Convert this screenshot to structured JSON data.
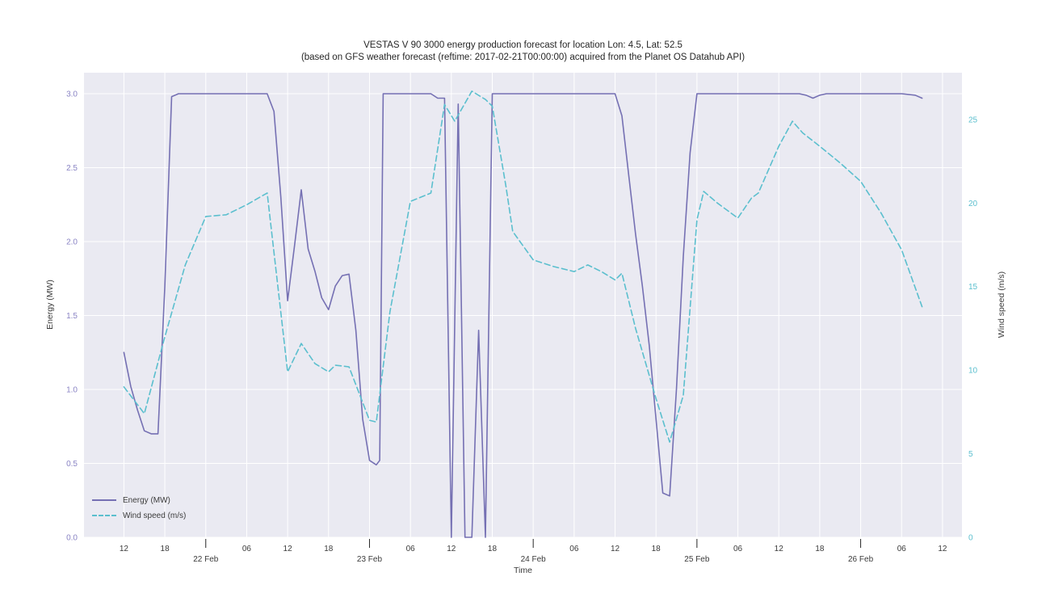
{
  "chart_data": {
    "type": "line",
    "title": "VESTAS V 90 3000 energy production forecast for location Lon: 4.5, Lat: 52.5",
    "subtitle": "(based on GFS weather forecast (reftime: 2017-02-21T00:00:00) acquired from the Planet OS Datahub API)",
    "xlabel": "Time",
    "ylabel_left": "Energy (MW)",
    "ylabel_right": "Wind speed (m/s)",
    "x_unit": "hours since 2017-02-21 12:00",
    "xlim": [
      -5.85,
      122.85
    ],
    "ylim_left": [
      0,
      3.142
    ],
    "ylim_right": [
      0,
      27.8
    ],
    "grid": true,
    "legend": {
      "position": "lower left"
    },
    "colors": {
      "plot_bg": "#eaeaf2",
      "grid": "#ffffff",
      "energy": "#7570b3",
      "wind": "#5bbfce",
      "left_tick": "#8a84c4",
      "right_tick": "#5bbfce",
      "tick": "#3a3a3a"
    },
    "x_ticks": [
      {
        "t": 0,
        "label": "12"
      },
      {
        "t": 6,
        "label": "18"
      },
      {
        "t": 12,
        "label": "",
        "day": "22 Feb"
      },
      {
        "t": 18,
        "label": "06"
      },
      {
        "t": 24,
        "label": "12"
      },
      {
        "t": 30,
        "label": "18"
      },
      {
        "t": 36,
        "label": "",
        "day": "23 Feb"
      },
      {
        "t": 42,
        "label": "06"
      },
      {
        "t": 48,
        "label": "12"
      },
      {
        "t": 54,
        "label": "18"
      },
      {
        "t": 60,
        "label": "",
        "day": "24 Feb"
      },
      {
        "t": 66,
        "label": "06"
      },
      {
        "t": 72,
        "label": "12"
      },
      {
        "t": 78,
        "label": "18"
      },
      {
        "t": 84,
        "label": "",
        "day": "25 Feb"
      },
      {
        "t": 90,
        "label": "06"
      },
      {
        "t": 96,
        "label": "12"
      },
      {
        "t": 102,
        "label": "18"
      },
      {
        "t": 108,
        "label": "",
        "day": "26 Feb"
      },
      {
        "t": 114,
        "label": "06"
      },
      {
        "t": 120,
        "label": "12"
      }
    ],
    "y_ticks_left": [
      {
        "v": 0.0,
        "label": "0.0"
      },
      {
        "v": 0.5,
        "label": "0.5"
      },
      {
        "v": 1.0,
        "label": "1.0"
      },
      {
        "v": 1.5,
        "label": "1.5"
      },
      {
        "v": 2.0,
        "label": "2.0"
      },
      {
        "v": 2.5,
        "label": "2.5"
      },
      {
        "v": 3.0,
        "label": "3.0"
      }
    ],
    "y_ticks_right": [
      {
        "v": 0,
        "label": "0"
      },
      {
        "v": 5,
        "label": "5"
      },
      {
        "v": 10,
        "label": "10"
      },
      {
        "v": 15,
        "label": "15"
      },
      {
        "v": 20,
        "label": "20"
      },
      {
        "v": 25,
        "label": "25"
      }
    ],
    "series": [
      {
        "name": "Energy (MW)",
        "axis": "left",
        "color": "#7570b3",
        "style": "solid",
        "points": [
          [
            0,
            1.25
          ],
          [
            1,
            1.02
          ],
          [
            2,
            0.86
          ],
          [
            3,
            0.72
          ],
          [
            4,
            0.7
          ],
          [
            5,
            0.7
          ],
          [
            6,
            1.7
          ],
          [
            7,
            2.98
          ],
          [
            8,
            3.0
          ],
          [
            21,
            3.0
          ],
          [
            22,
            2.88
          ],
          [
            23,
            2.3
          ],
          [
            24,
            1.6
          ],
          [
            25,
            1.97
          ],
          [
            26,
            2.35
          ],
          [
            27,
            1.95
          ],
          [
            28,
            1.8
          ],
          [
            29,
            1.62
          ],
          [
            30,
            1.54
          ],
          [
            31,
            1.7
          ],
          [
            32,
            1.77
          ],
          [
            33,
            1.78
          ],
          [
            34,
            1.4
          ],
          [
            35,
            0.8
          ],
          [
            36,
            0.52
          ],
          [
            37,
            0.49
          ],
          [
            37.5,
            0.52
          ],
          [
            38,
            3.0
          ],
          [
            45,
            3.0
          ],
          [
            46,
            2.97
          ],
          [
            47,
            2.97
          ],
          [
            48,
            0.0
          ],
          [
            49,
            2.93
          ],
          [
            50,
            0.0
          ],
          [
            51,
            0.0
          ],
          [
            52,
            1.4
          ],
          [
            53,
            0.0
          ],
          [
            54,
            3.0
          ],
          [
            72,
            3.0
          ],
          [
            73,
            2.85
          ],
          [
            74,
            2.45
          ],
          [
            75,
            2.05
          ],
          [
            76,
            1.7
          ],
          [
            77,
            1.3
          ],
          [
            78,
            0.8
          ],
          [
            79,
            0.3
          ],
          [
            80,
            0.28
          ],
          [
            81,
            1.0
          ],
          [
            82,
            1.9
          ],
          [
            83,
            2.6
          ],
          [
            84,
            3.0
          ],
          [
            99,
            3.0
          ],
          [
            100,
            2.99
          ],
          [
            101,
            2.97
          ],
          [
            102,
            2.99
          ],
          [
            103,
            3.0
          ],
          [
            114,
            3.0
          ],
          [
            116,
            2.99
          ],
          [
            117,
            2.97
          ]
        ]
      },
      {
        "name": "Wind speed (m/s)",
        "axis": "right",
        "color": "#5bbfce",
        "style": "dashed",
        "points": [
          [
            0,
            9.0
          ],
          [
            3,
            7.4
          ],
          [
            6,
            12.0
          ],
          [
            9,
            16.3
          ],
          [
            12,
            19.2
          ],
          [
            15,
            19.3
          ],
          [
            18,
            19.9
          ],
          [
            21,
            20.6
          ],
          [
            24,
            9.9
          ],
          [
            26,
            11.6
          ],
          [
            28,
            10.4
          ],
          [
            30,
            9.9
          ],
          [
            31,
            10.3
          ],
          [
            33,
            10.2
          ],
          [
            36,
            7.0
          ],
          [
            37,
            6.9
          ],
          [
            39,
            13.5
          ],
          [
            42,
            20.1
          ],
          [
            45,
            20.6
          ],
          [
            47,
            25.9
          ],
          [
            48.5,
            24.9
          ],
          [
            51,
            26.7
          ],
          [
            53,
            26.2
          ],
          [
            54,
            25.8
          ],
          [
            56,
            21.0
          ],
          [
            57,
            18.3
          ],
          [
            60,
            16.6
          ],
          [
            63,
            16.2
          ],
          [
            66,
            15.9
          ],
          [
            68,
            16.3
          ],
          [
            70,
            15.9
          ],
          [
            72,
            15.4
          ],
          [
            73,
            15.8
          ],
          [
            75,
            12.5
          ],
          [
            78,
            8.3
          ],
          [
            80,
            5.7
          ],
          [
            82,
            8.5
          ],
          [
            84,
            19.0
          ],
          [
            85,
            20.7
          ],
          [
            87,
            20.0
          ],
          [
            90,
            19.1
          ],
          [
            92,
            20.3
          ],
          [
            93,
            20.6
          ],
          [
            96,
            23.4
          ],
          [
            98,
            24.9
          ],
          [
            99.5,
            24.2
          ],
          [
            102,
            23.4
          ],
          [
            105,
            22.4
          ],
          [
            108,
            21.3
          ],
          [
            111,
            19.4
          ],
          [
            114,
            17.2
          ],
          [
            117,
            13.8
          ]
        ]
      }
    ]
  }
}
